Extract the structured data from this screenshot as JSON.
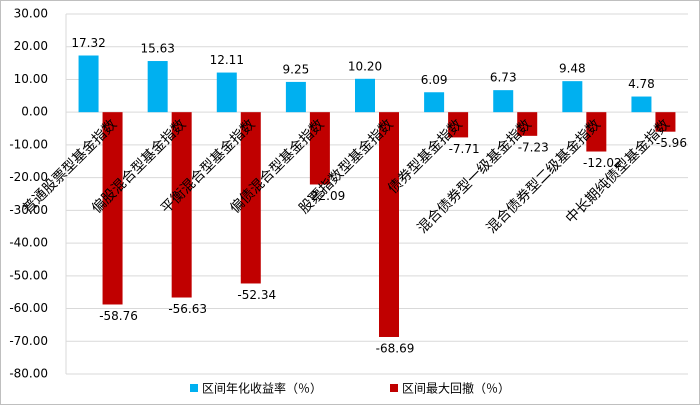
{
  "chart_data": {
    "type": "bar",
    "categories": [
      "普通股票型基金指数",
      "偏股混合型基金指数",
      "平衡混合型基金指数",
      "偏债混合型基金指数",
      "股票指数型基金指数",
      "债券型基金指数",
      "混合债券型一级基金指数",
      "混合债券型二级基金指数",
      "中长期纯债型基金指数"
    ],
    "series": [
      {
        "name": "区间年化收益率（％）",
        "color": "#00b0f0",
        "values": [
          17.32,
          15.63,
          12.11,
          9.25,
          10.2,
          6.09,
          6.73,
          9.48,
          4.78
        ],
        "value_labels": [
          "17.32",
          "15.63",
          "12.11",
          "9.25",
          "10.20",
          "6.09",
          "6.73",
          "9.48",
          "4.78"
        ]
      },
      {
        "name": "区间最大回撤（％）",
        "color": "#c00000",
        "values": [
          -58.76,
          -56.63,
          -52.34,
          -22.09,
          -68.69,
          -7.71,
          -7.23,
          -12.02,
          -5.96
        ],
        "value_labels": [
          "-58.76",
          "-56.63",
          "-52.34",
          "-22.09",
          "-68.69",
          "-7.71",
          "-7.23",
          "-12.02",
          "-5.96"
        ]
      }
    ],
    "ylim": [
      -80,
      30
    ],
    "yticks": [
      {
        "value": -80,
        "label": "-80.00"
      },
      {
        "value": -70,
        "label": "-70.00"
      },
      {
        "value": -60,
        "label": "-60.00"
      },
      {
        "value": -50,
        "label": "-50.00"
      },
      {
        "value": -40,
        "label": "-40.00"
      },
      {
        "value": -30,
        "label": "-30.00"
      },
      {
        "value": -20,
        "label": "-20.00"
      },
      {
        "value": -10,
        "label": "-10.00"
      },
      {
        "value": 0,
        "label": "0.00"
      },
      {
        "value": 10,
        "label": "10.00"
      },
      {
        "value": 20,
        "label": "20.00"
      },
      {
        "value": 30,
        "label": "30.00"
      }
    ],
    "grid": true,
    "legend": "bottom"
  }
}
